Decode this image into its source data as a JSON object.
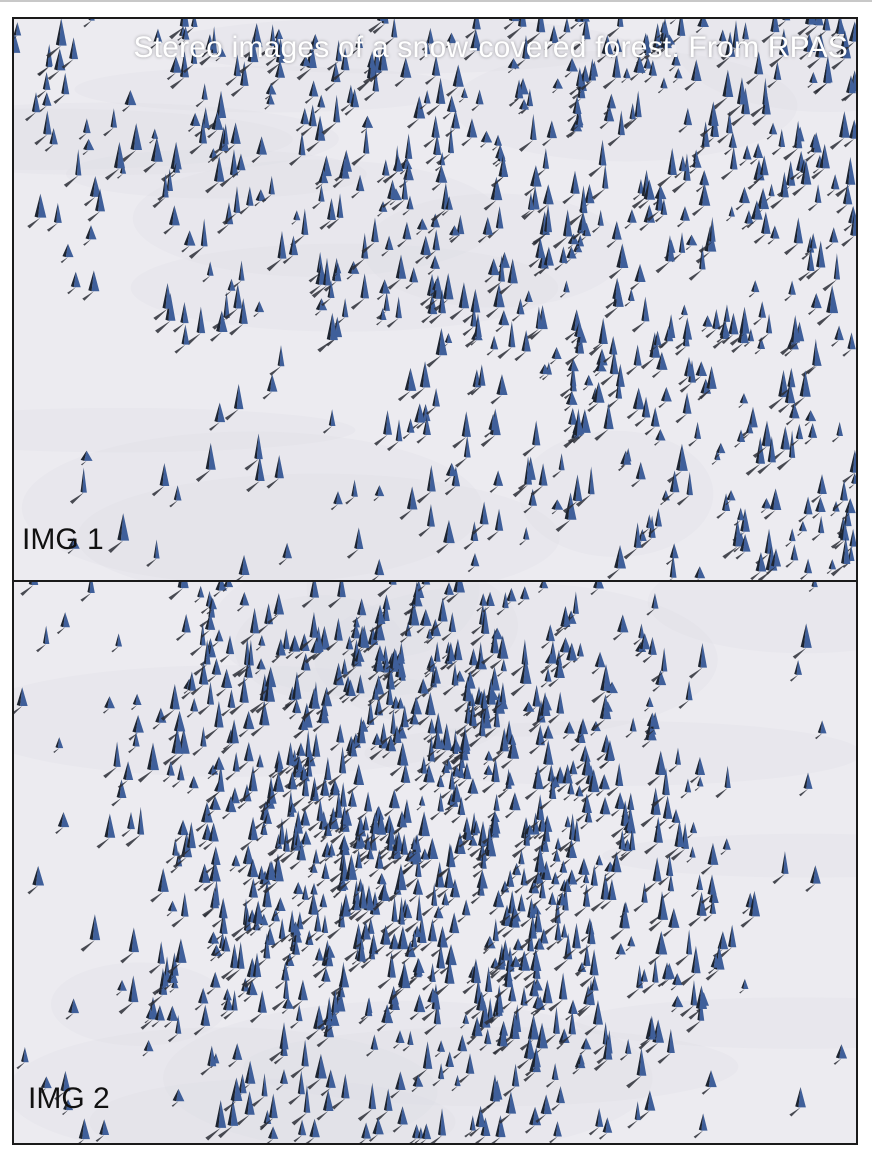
{
  "figure": {
    "title": "Stereo images of a snow-covered forest. From RPAS"
  },
  "panels": [
    {
      "label": "IMG 1"
    },
    {
      "label": "IMG 2"
    }
  ],
  "colors": {
    "snow": "#ecebf0",
    "snow_shade": "#dcdce4",
    "tree_blue": "#3f5f9a",
    "tree_dark": "#1d2430",
    "shadow": "#2b2e36",
    "frame": "#1a1a1a"
  }
}
